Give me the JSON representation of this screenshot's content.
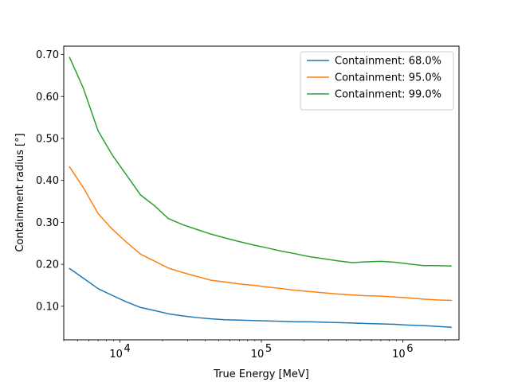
{
  "chart_data": {
    "type": "line",
    "title": "",
    "xlabel": "True Energy [MeV]",
    "ylabel": "Containment radius [°]",
    "xscale": "log",
    "xlim": [
      4000,
      2500000
    ],
    "ylim": [
      0.02,
      0.72
    ],
    "grid": false,
    "legend_position": "top-right",
    "x_ticks": [
      {
        "value": 10000,
        "base": "10",
        "exp": "4"
      },
      {
        "value": 100000,
        "base": "10",
        "exp": "5"
      },
      {
        "value": 1000000,
        "base": "10",
        "exp": "6"
      }
    ],
    "y_ticks": [
      {
        "value": 0.1,
        "label": "0.10"
      },
      {
        "value": 0.2,
        "label": "0.20"
      },
      {
        "value": 0.3,
        "label": "0.30"
      },
      {
        "value": 0.4,
        "label": "0.40"
      },
      {
        "value": 0.5,
        "label": "0.50"
      },
      {
        "value": 0.6,
        "label": "0.60"
      },
      {
        "value": 0.7,
        "label": "0.70"
      }
    ],
    "x": [
      4400,
      5500,
      7000,
      8800,
      11000,
      14000,
      17500,
      22000,
      28000,
      35000,
      44000,
      55000,
      70000,
      88000,
      110000,
      140000,
      175000,
      220000,
      280000,
      350000,
      440000,
      550000,
      700000,
      880000,
      1100000,
      1400000,
      1750000,
      2200000
    ],
    "series": [
      {
        "name": "Containment: 68.0%",
        "color": "#1f77b4",
        "values": [
          0.19,
          0.167,
          0.142,
          0.126,
          0.111,
          0.097,
          0.09,
          0.082,
          0.077,
          0.073,
          0.07,
          0.068,
          0.067,
          0.066,
          0.065,
          0.064,
          0.063,
          0.063,
          0.062,
          0.061,
          0.06,
          0.059,
          0.058,
          0.057,
          0.055,
          0.054,
          0.052,
          0.05
        ]
      },
      {
        "name": "Containment: 95.0%",
        "color": "#ff7f0e",
        "values": [
          0.432,
          0.383,
          0.321,
          0.284,
          0.254,
          0.224,
          0.208,
          0.191,
          0.18,
          0.171,
          0.162,
          0.158,
          0.153,
          0.15,
          0.146,
          0.142,
          0.138,
          0.135,
          0.132,
          0.129,
          0.127,
          0.125,
          0.124,
          0.122,
          0.12,
          0.117,
          0.115,
          0.114
        ]
      },
      {
        "name": "Containment: 99.0%",
        "color": "#2ca02c",
        "values": [
          0.693,
          0.62,
          0.518,
          0.461,
          0.415,
          0.365,
          0.34,
          0.309,
          0.294,
          0.283,
          0.272,
          0.263,
          0.254,
          0.246,
          0.239,
          0.231,
          0.225,
          0.218,
          0.213,
          0.208,
          0.204,
          0.206,
          0.207,
          0.205,
          0.201,
          0.197,
          0.197,
          0.196
        ]
      }
    ]
  }
}
